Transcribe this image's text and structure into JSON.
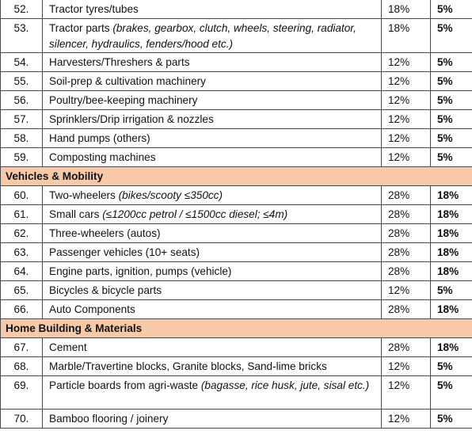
{
  "rows": [
    {
      "num": "52.",
      "text": "Tractor tyres/tubes",
      "note": "",
      "old": "18%",
      "new": "5%"
    },
    {
      "num": "53.",
      "text": "Tractor parts ",
      "note": "(brakes, gearbox, clutch, wheels, steering, radiator, silencer, hydraulics, fenders/hood etc.)",
      "old": "18%",
      "new": "5%"
    },
    {
      "num": "54.",
      "text": "Harvesters/Threshers & parts",
      "note": "",
      "old": "12%",
      "new": "5%"
    },
    {
      "num": "55.",
      "text": "Soil-prep & cultivation machinery",
      "note": "",
      "old": "12%",
      "new": "5%"
    },
    {
      "num": "56.",
      "text": "Poultry/bee-keeping machinery",
      "note": "",
      "old": "12%",
      "new": "5%"
    },
    {
      "num": "57.",
      "text": "Sprinklers/Drip irrigation & nozzles",
      "note": "",
      "old": "12%",
      "new": "5%"
    },
    {
      "num": "58.",
      "text": "Hand pumps (others)",
      "note": "",
      "old": "12%",
      "new": "5%"
    },
    {
      "num": "59.",
      "text": "Composting machines",
      "note": "",
      "old": "12%",
      "new": "5%"
    }
  ],
  "section_vehicles": "Vehicles & Mobility",
  "vehicles": [
    {
      "num": "60.",
      "text": "Two-wheelers ",
      "note": "(bikes/scooty ≤350cc)",
      "old": "28%",
      "new": "18%"
    },
    {
      "num": "61.",
      "text": "Small cars ",
      "note": "(≤1200cc petrol / ≤1500cc diesel; ≤4m)",
      "old": "28%",
      "new": "18%"
    },
    {
      "num": "62.",
      "text": "Three-wheelers (autos)",
      "note": "",
      "old": "28%",
      "new": "18%"
    },
    {
      "num": "63.",
      "text": "Passenger vehicles (10+ seats)",
      "note": "",
      "old": "28%",
      "new": "18%"
    },
    {
      "num": "64.",
      "text": "Engine parts, ignition, pumps (vehicle)",
      "note": "",
      "old": "28%",
      "new": "18%"
    },
    {
      "num": "65.",
      "text": "Bicycles & bicycle parts",
      "note": "",
      "old": "12%",
      "new": "5%"
    },
    {
      "num": "66.",
      "text": "Auto Components",
      "note": "",
      "old": "28%",
      "new": "18%"
    }
  ],
  "section_home": "Home Building & Materials",
  "home": [
    {
      "num": "67.",
      "text": "Cement",
      "note": "",
      "old": "28%",
      "new": "18%"
    },
    {
      "num": "68.",
      "text": "Marble/Travertine blocks, Granite blocks, Sand-lime bricks",
      "note": "",
      "old": "12%",
      "new": "5%"
    },
    {
      "num": "69.",
      "text": "Particle boards from agri-waste ",
      "note": "(bagasse, rice husk, jute, sisal etc.)",
      "old": "12%",
      "new": "5%"
    },
    {
      "num": "70.",
      "text": "Bamboo flooring / joinery",
      "note": "",
      "old": "12%",
      "new": "5%"
    }
  ]
}
